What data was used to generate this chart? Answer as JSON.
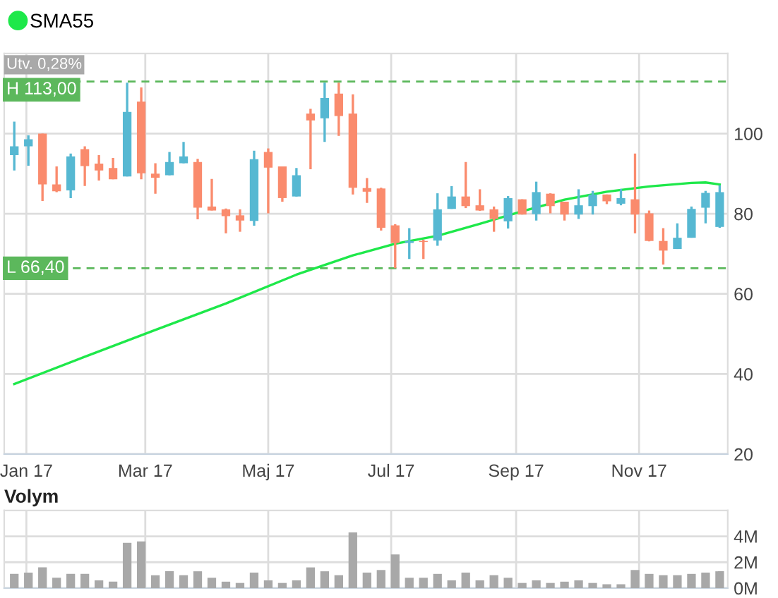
{
  "chart_data": [
    {
      "type": "candlestick",
      "legend": "top left",
      "grid": true,
      "x": [
        "2016-12-26",
        "2017-01-02",
        "2017-01-09",
        "2017-01-16",
        "2017-01-23",
        "2017-01-30",
        "2017-02-06",
        "2017-02-13",
        "2017-02-20",
        "2017-02-27",
        "2017-03-06",
        "2017-03-13",
        "2017-03-20",
        "2017-03-27",
        "2017-04-03",
        "2017-04-10",
        "2017-04-17",
        "2017-04-24",
        "2017-05-01",
        "2017-05-08",
        "2017-05-15",
        "2017-05-22",
        "2017-05-29",
        "2017-06-05",
        "2017-06-12",
        "2017-06-19",
        "2017-06-26",
        "2017-07-03",
        "2017-07-10",
        "2017-07-17",
        "2017-07-24",
        "2017-07-31",
        "2017-08-07",
        "2017-08-14",
        "2017-08-21",
        "2017-08-28",
        "2017-09-04",
        "2017-09-11",
        "2017-09-18",
        "2017-09-25",
        "2017-10-02",
        "2017-10-09",
        "2017-10-16",
        "2017-10-23",
        "2017-10-30",
        "2017-11-06",
        "2017-11-13",
        "2017-11-20",
        "2017-11-27",
        "2017-12-04",
        "2017-12-11"
      ],
      "ohlc": [
        [
          94.6,
          103.0,
          90.8,
          96.8
        ],
        [
          96.8,
          99.6,
          92.0,
          98.6
        ],
        [
          100.0,
          100.0,
          83.2,
          87.3
        ],
        [
          87.3,
          91.8,
          85.4,
          85.6
        ],
        [
          85.8,
          95.0,
          83.9,
          94.3
        ],
        [
          96.1,
          96.8,
          86.9,
          91.9
        ],
        [
          92.5,
          94.6,
          88.3,
          90.8
        ],
        [
          91.4,
          93.9,
          88.6,
          88.6
        ],
        [
          89.3,
          112.7,
          89.3,
          105.4
        ],
        [
          108.0,
          111.5,
          88.6,
          90.1
        ],
        [
          90.0,
          92.6,
          85.0,
          89.0
        ],
        [
          89.6,
          95.4,
          89.6,
          92.9
        ],
        [
          92.6,
          97.9,
          92.6,
          94.3
        ],
        [
          92.9,
          93.7,
          78.6,
          81.5
        ],
        [
          81.8,
          88.7,
          80.8,
          80.8
        ],
        [
          81.1,
          81.3,
          75.1,
          79.4
        ],
        [
          79.6,
          81.1,
          75.5,
          78.3
        ],
        [
          78.2,
          95.7,
          77.0,
          93.6
        ],
        [
          95.4,
          96.3,
          80.1,
          91.5
        ],
        [
          91.8,
          91.8,
          83.0,
          83.9
        ],
        [
          84.3,
          91.4,
          84.3,
          89.6
        ],
        [
          105.0,
          106.2,
          91.1,
          103.3
        ],
        [
          103.8,
          112.7,
          97.9,
          108.9
        ],
        [
          110.0,
          112.7,
          99.4,
          104.4
        ],
        [
          105.0,
          109.8,
          84.8,
          86.5
        ],
        [
          86.4,
          88.9,
          82.7,
          85.5
        ],
        [
          86.3,
          86.5,
          75.8,
          76.5
        ],
        [
          77.1,
          77.4,
          66.4,
          72.7
        ],
        [
          72.7,
          76.4,
          68.7,
          73.2
        ],
        [
          73.2,
          73.5,
          68.7,
          73.0
        ],
        [
          73.3,
          85.1,
          72.0,
          81.1
        ],
        [
          81.2,
          86.9,
          81.2,
          84.3
        ],
        [
          84.3,
          92.9,
          81.4,
          81.9
        ],
        [
          82.1,
          86.1,
          80.7,
          80.8
        ],
        [
          81.1,
          81.8,
          75.5,
          78.7
        ],
        [
          78.1,
          84.4,
          76.3,
          83.9
        ],
        [
          83.6,
          83.6,
          79.8,
          79.8
        ],
        [
          79.9,
          88.0,
          78.3,
          85.4
        ],
        [
          85.0,
          85.1,
          80.1,
          81.9
        ],
        [
          83.0,
          83.0,
          78.3,
          79.8
        ],
        [
          79.8,
          86.1,
          78.7,
          82.1
        ],
        [
          81.9,
          85.7,
          79.8,
          84.8
        ],
        [
          84.8,
          84.8,
          82.4,
          83.1
        ],
        [
          82.5,
          86.2,
          82.1,
          83.9
        ],
        [
          83.6,
          95.0,
          75.1,
          79.8
        ],
        [
          80.1,
          80.8,
          73.1,
          73.2
        ],
        [
          73.2,
          76.4,
          67.3,
          70.8
        ],
        [
          71.2,
          77.6,
          71.2,
          74.0
        ],
        [
          74.0,
          81.8,
          74.0,
          81.2
        ],
        [
          81.5,
          85.7,
          77.6,
          85.2
        ],
        [
          76.7,
          87.1,
          76.5,
          85.4
        ]
      ],
      "colors": [
        "#56b8d2",
        "#56b8d2",
        "#fa8b6d",
        "#fa8b6d",
        "#56b8d2",
        "#fa8b6d",
        "#fa8b6d",
        "#fa8b6d",
        "#56b8d2",
        "#fa8b6d",
        "#fa8b6d",
        "#56b8d2",
        "#56b8d2",
        "#fa8b6d",
        "#fa8b6d",
        "#fa8b6d",
        "#fa8b6d",
        "#56b8d2",
        "#fa8b6d",
        "#fa8b6d",
        "#56b8d2",
        "#fa8b6d",
        "#56b8d2",
        "#fa8b6d",
        "#fa8b6d",
        "#fa8b6d",
        "#fa8b6d",
        "#fa8b6d",
        "#56b8d2",
        "#fa8b6d",
        "#56b8d2",
        "#56b8d2",
        "#fa8b6d",
        "#fa8b6d",
        "#fa8b6d",
        "#56b8d2",
        "#fa8b6d",
        "#56b8d2",
        "#fa8b6d",
        "#fa8b6d",
        "#56b8d2",
        "#56b8d2",
        "#fa8b6d",
        "#56b8d2",
        "#fa8b6d",
        "#fa8b6d",
        "#fa8b6d",
        "#56b8d2",
        "#56b8d2",
        "#56b8d2",
        "#56b8d2"
      ],
      "series": [
        {
          "name": "SMA55",
          "type": "line",
          "color": "#1ee84a",
          "x": [
            "2016-12-26",
            "2017-01-30",
            "2017-03-06",
            "2017-04-10",
            "2017-05-15",
            "2017-06-12",
            "2017-07-03",
            "2017-07-24",
            "2017-08-14",
            "2017-09-04",
            "2017-09-25",
            "2017-10-16",
            "2017-11-06",
            "2017-11-27",
            "2017-12-04",
            "2017-12-11"
          ],
          "values": [
            37.5,
            44.3,
            51.0,
            57.6,
            64.8,
            69.6,
            72.5,
            74.5,
            77.5,
            80.6,
            83.5,
            85.5,
            86.8,
            87.7,
            87.8,
            87.3
          ]
        }
      ],
      "xlim": [
        "2016-12-21",
        "2017-12-15"
      ],
      "xticks": [
        {
          "value": "2017-01-01",
          "label": "Jan 17"
        },
        {
          "value": "2017-03-01",
          "label": "Mar 17"
        },
        {
          "value": "2017-05-01",
          "label": "Maj 17"
        },
        {
          "value": "2017-07-01",
          "label": "Jul 17"
        },
        {
          "value": "2017-09-01",
          "label": "Sep 17"
        },
        {
          "value": "2017-11-01",
          "label": "Nov 17"
        }
      ],
      "ylim": [
        20,
        120
      ],
      "yticks": [
        20,
        40,
        60,
        80,
        100
      ],
      "ref_lines": [
        {
          "axis": "y",
          "value": 113.0,
          "label": "H 113,00",
          "color": "#5cb85c",
          "line_style": "dashed"
        },
        {
          "axis": "y",
          "value": 66.4,
          "label": "L 66,40",
          "color": "#5cb85c",
          "line_style": "dashed"
        }
      ],
      "annotations": [
        "Utv. 0,28%"
      ]
    },
    {
      "type": "bar",
      "title": "Volym",
      "grid": true,
      "tick_labels": "y",
      "color": "#a8a8a8",
      "x": [
        "2016-12-26",
        "2017-01-02",
        "2017-01-09",
        "2017-01-16",
        "2017-01-23",
        "2017-01-30",
        "2017-02-06",
        "2017-02-13",
        "2017-02-20",
        "2017-02-27",
        "2017-03-06",
        "2017-03-13",
        "2017-03-20",
        "2017-03-27",
        "2017-04-03",
        "2017-04-10",
        "2017-04-17",
        "2017-04-24",
        "2017-05-01",
        "2017-05-08",
        "2017-05-15",
        "2017-05-22",
        "2017-05-29",
        "2017-06-05",
        "2017-06-12",
        "2017-06-19",
        "2017-06-26",
        "2017-07-03",
        "2017-07-10",
        "2017-07-17",
        "2017-07-24",
        "2017-07-31",
        "2017-08-07",
        "2017-08-14",
        "2017-08-21",
        "2017-08-28",
        "2017-09-04",
        "2017-09-11",
        "2017-09-18",
        "2017-09-25",
        "2017-10-02",
        "2017-10-09",
        "2017-10-16",
        "2017-10-23",
        "2017-10-30",
        "2017-11-06",
        "2017-11-13",
        "2017-11-20",
        "2017-11-27",
        "2017-12-04",
        "2017-12-11"
      ],
      "values": [
        1.1,
        1.2,
        1.6,
        0.8,
        1.1,
        1.1,
        0.6,
        0.5,
        3.5,
        3.6,
        1.0,
        1.3,
        1.0,
        1.3,
        0.8,
        0.5,
        0.4,
        1.2,
        0.6,
        0.4,
        0.6,
        1.6,
        1.3,
        1.0,
        4.3,
        1.2,
        1.4,
        2.6,
        0.8,
        0.8,
        1.1,
        0.6,
        1.2,
        0.6,
        1.0,
        0.8,
        0.4,
        0.6,
        0.4,
        0.5,
        0.6,
        0.4,
        0.3,
        0.3,
        1.4,
        1.1,
        1.0,
        1.0,
        1.1,
        1.2,
        1.3
      ],
      "xlim": [
        "2016-12-21",
        "2017-12-15"
      ],
      "xticks": [
        {
          "value": "2017-01-01",
          "label": null
        },
        {
          "value": "2017-03-01",
          "label": null
        },
        {
          "value": "2017-05-01",
          "label": null
        },
        {
          "value": "2017-07-01",
          "label": null
        },
        {
          "value": "2017-09-01",
          "label": null
        },
        {
          "value": "2017-11-01",
          "label": null
        }
      ],
      "ylim": [
        0,
        6
      ],
      "yticks": [
        {
          "value": 0,
          "label": "0M"
        },
        {
          "value": 2,
          "label": "2M"
        },
        {
          "value": 4,
          "label": "4M"
        }
      ]
    }
  ]
}
